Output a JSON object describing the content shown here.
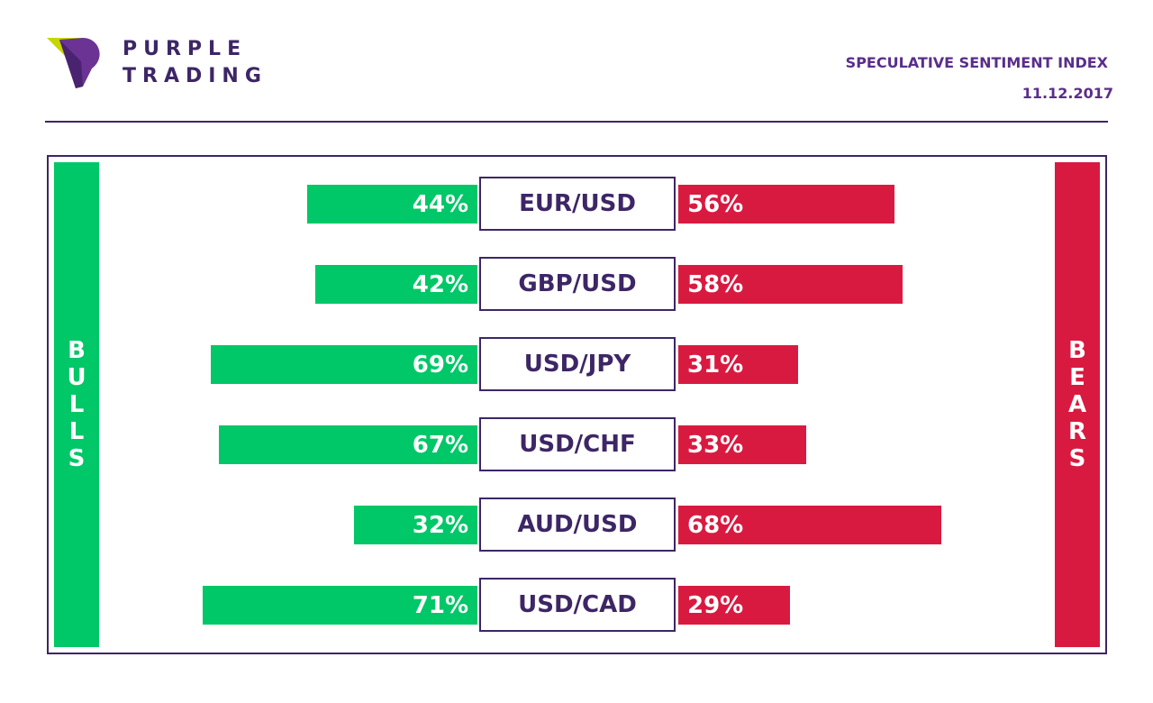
{
  "header": {
    "brand_line1": "PURPLE",
    "brand_line2": "TRADING",
    "title": "SPECULATIVE SENTIMENT INDEX",
    "date": "11.12.2017"
  },
  "legend": {
    "bulls": "BULLS",
    "bears": "BEARS"
  },
  "colors": {
    "bulls": "#00c767",
    "bears": "#d91a40",
    "brand_purple": "#3d2666",
    "header_text": "#5a2d8c"
  },
  "chart_data": {
    "type": "bar",
    "categories": [
      "EUR/USD",
      "GBP/USD",
      "USD/JPY",
      "USD/CHF",
      "AUD/USD",
      "USD/CAD"
    ],
    "series": [
      {
        "name": "BULLS",
        "values": [
          44,
          42,
          69,
          67,
          32,
          71
        ],
        "labels": [
          "44%",
          "42%",
          "69%",
          "67%",
          "32%",
          "71%"
        ]
      },
      {
        "name": "BEARS",
        "values": [
          56,
          58,
          31,
          33,
          68,
          29
        ],
        "labels": [
          "56%",
          "58%",
          "31%",
          "33%",
          "68%",
          "29%"
        ]
      }
    ],
    "title": "SPECULATIVE SENTIMENT INDEX",
    "xlabel": "",
    "ylabel": "",
    "legend": "sides"
  }
}
